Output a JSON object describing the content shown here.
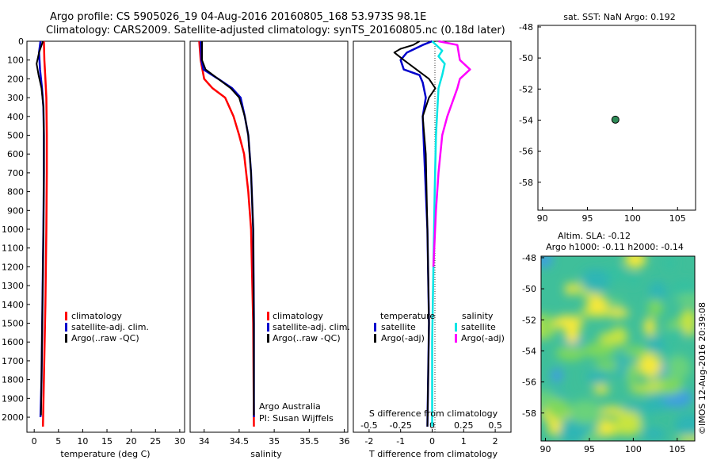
{
  "title": {
    "line1": "Argo profile: CS 5905026_19 04-Aug-2016 20160805_168 53.973S 98.1E",
    "line2": "Climatology: CARS2009. Satellite-adjusted climatology: synTS_20160805.nc (0.18d later)"
  },
  "credit": "Argo Australia",
  "pi": "PI: Susan Wijffels",
  "stamp": "©IMOS 12-Aug-2016 20:39:08",
  "colors": {
    "climatology": "#ff0000",
    "satellite": "#0000cc",
    "argo": "#000000",
    "sat_salinity": "#00e5e5",
    "argo_salinity": "#ff00ff",
    "marker": "#2e8b57"
  },
  "chart_data": [
    {
      "id": "temperature",
      "type": "line",
      "xlabel": "temperature (deg C)",
      "xlim": [
        -1.5,
        31
      ],
      "xticks": [
        0,
        5,
        10,
        15,
        20,
        25,
        30
      ],
      "ylim": [
        2080,
        0
      ],
      "yticks": [
        0,
        100,
        200,
        300,
        400,
        500,
        600,
        700,
        800,
        900,
        1000,
        1100,
        1200,
        1300,
        1400,
        1500,
        1600,
        1700,
        1800,
        1900,
        2000
      ],
      "legend": [
        "climatology",
        "satellite-adj. clim.",
        "Argo(..raw -QC)"
      ],
      "series": [
        {
          "name": "climatology",
          "color": "red",
          "points": [
            [
              2.0,
              0
            ],
            [
              2.1,
              100
            ],
            [
              2.3,
              200
            ],
            [
              2.5,
              300
            ],
            [
              2.6,
              500
            ],
            [
              2.6,
              700
            ],
            [
              2.5,
              1000
            ],
            [
              2.3,
              1400
            ],
            [
              2.0,
              1800
            ],
            [
              1.8,
              2050
            ]
          ]
        },
        {
          "name": "satellite-adj. clim.",
          "color": "blue",
          "points": [
            [
              1.3,
              0
            ],
            [
              1.0,
              60
            ],
            [
              1.2,
              150
            ],
            [
              1.6,
              250
            ],
            [
              1.9,
              350
            ],
            [
              2.0,
              500
            ],
            [
              2.0,
              700
            ],
            [
              1.9,
              1000
            ],
            [
              1.7,
              1400
            ],
            [
              1.5,
              1800
            ],
            [
              1.3,
              2000
            ]
          ]
        },
        {
          "name": "Argo(..raw -QC)",
          "color": "black",
          "points": [
            [
              1.8,
              0
            ],
            [
              1.0,
              60
            ],
            [
              0.5,
              120
            ],
            [
              0.9,
              180
            ],
            [
              1.5,
              250
            ],
            [
              1.9,
              350
            ],
            [
              2.0,
              500
            ],
            [
              2.0,
              700
            ],
            [
              1.9,
              1000
            ],
            [
              1.7,
              1400
            ],
            [
              1.5,
              1800
            ],
            [
              1.4,
              1990
            ]
          ]
        }
      ]
    },
    {
      "id": "salinity",
      "type": "line",
      "xlabel": "salinity",
      "xlim": [
        33.8,
        36.05
      ],
      "xticks": [
        34,
        34.5,
        35,
        35.5,
        36
      ],
      "ylim": [
        2080,
        0
      ],
      "legend": [
        "climatology",
        "satellite-adj. clim.",
        "Argo(..raw -QC)"
      ],
      "series": [
        {
          "name": "climatology",
          "color": "red",
          "points": [
            [
              33.93,
              0
            ],
            [
              33.95,
              100
            ],
            [
              34.0,
              200
            ],
            [
              34.12,
              250
            ],
            [
              34.3,
              300
            ],
            [
              34.42,
              400
            ],
            [
              34.5,
              500
            ],
            [
              34.57,
              600
            ],
            [
              34.63,
              800
            ],
            [
              34.67,
              1000
            ],
            [
              34.7,
              1500
            ],
            [
              34.71,
              2050
            ]
          ]
        },
        {
          "name": "satellite-adj. clim.",
          "color": "blue",
          "points": [
            [
              33.95,
              0
            ],
            [
              33.96,
              100
            ],
            [
              33.99,
              150
            ],
            [
              34.2,
              200
            ],
            [
              34.4,
              250
            ],
            [
              34.52,
              300
            ],
            [
              34.58,
              400
            ],
            [
              34.63,
              500
            ],
            [
              34.67,
              700
            ],
            [
              34.7,
              1000
            ],
            [
              34.71,
              1500
            ],
            [
              34.71,
              2000
            ]
          ]
        },
        {
          "name": "Argo(..raw -QC)",
          "color": "black",
          "points": [
            [
              33.97,
              0
            ],
            [
              33.97,
              100
            ],
            [
              34.02,
              150
            ],
            [
              34.2,
              200
            ],
            [
              34.38,
              250
            ],
            [
              34.5,
              300
            ],
            [
              34.58,
              400
            ],
            [
              34.63,
              500
            ],
            [
              34.67,
              700
            ],
            [
              34.7,
              1000
            ],
            [
              34.71,
              1500
            ],
            [
              34.71,
              1990
            ]
          ]
        }
      ]
    },
    {
      "id": "difference",
      "type": "line",
      "xlabel": "T difference from climatology",
      "x2label": "S difference from climatology",
      "xlim": [
        -2.5,
        2.5
      ],
      "xticks": [
        -2,
        -1,
        0,
        1,
        2
      ],
      "x2ticks": [
        -0.5,
        -0.25,
        0,
        0.25,
        0.5
      ],
      "ylim": [
        2080,
        0
      ],
      "legend_temperature": [
        "temperature",
        "satellite",
        "Argo(-adj)"
      ],
      "legend_salinity": [
        "salinity",
        "satellite",
        "Argo(-adj)"
      ],
      "series": [
        {
          "name": "T satellite",
          "color": "blue",
          "points": [
            [
              0,
              0
            ],
            [
              -0.3,
              20
            ],
            [
              -0.8,
              60
            ],
            [
              -1.0,
              100
            ],
            [
              -0.9,
              150
            ],
            [
              -0.4,
              180
            ],
            [
              -0.3,
              220
            ],
            [
              -0.2,
              300
            ],
            [
              -0.3,
              400
            ],
            [
              -0.25,
              600
            ],
            [
              -0.15,
              1000
            ],
            [
              -0.1,
              1500
            ],
            [
              -0.15,
              2050
            ]
          ]
        },
        {
          "name": "T Argo(-adj)",
          "color": "black",
          "points": [
            [
              -0.4,
              0
            ],
            [
              -0.6,
              20
            ],
            [
              -1.0,
              40
            ],
            [
              -1.2,
              60
            ],
            [
              -0.9,
              100
            ],
            [
              -0.5,
              150
            ],
            [
              -0.1,
              200
            ],
            [
              0.1,
              250
            ],
            [
              -0.1,
              300
            ],
            [
              -0.3,
              400
            ],
            [
              -0.2,
              600
            ],
            [
              -0.15,
              1000
            ],
            [
              -0.1,
              1500
            ],
            [
              -0.15,
              2050
            ]
          ]
        },
        {
          "name": "S satellite",
          "color": "cyan",
          "points": [
            [
              0.0,
              0
            ],
            [
              0.08,
              50
            ],
            [
              0.05,
              80
            ],
            [
              0.1,
              120
            ],
            [
              0.08,
              180
            ],
            [
              0.05,
              250
            ],
            [
              0.03,
              500
            ],
            [
              0.02,
              800
            ],
            [
              0.01,
              1200
            ],
            [
              0.0,
              1600
            ],
            [
              0.0,
              2050
            ]
          ]
        },
        {
          "name": "S Argo(-adj)",
          "color": "magenta",
          "points": [
            [
              0.05,
              0
            ],
            [
              0.2,
              20
            ],
            [
              0.22,
              100
            ],
            [
              0.3,
              150
            ],
            [
              0.22,
              200
            ],
            [
              0.2,
              250
            ],
            [
              0.12,
              400
            ],
            [
              0.08,
              500
            ],
            [
              0.05,
              700
            ],
            [
              0.03,
              900
            ],
            [
              0.01,
              1200
            ]
          ]
        }
      ]
    },
    {
      "id": "location",
      "type": "scatter",
      "title": "sat. SST: NaN Argo: 0.192",
      "xlim": [
        89.5,
        107
      ],
      "xticks": [
        90,
        95,
        100,
        105
      ],
      "ylim": [
        -59.8,
        -47.9
      ],
      "yticks": [
        -48,
        -50,
        -52,
        -54,
        -56,
        -58
      ],
      "points": [
        [
          98.1,
          -53.97
        ]
      ]
    },
    {
      "id": "sla",
      "type": "heatmap",
      "title1": "Altim. SLA: -0.12",
      "title2": "Argo h1000: -0.11 h2000: -0.14",
      "xlim": [
        89.5,
        107
      ],
      "xticks": [
        90,
        95,
        100,
        105
      ],
      "ylim": [
        -59.8,
        -47.9
      ],
      "yticks": [
        -48,
        -50,
        -52,
        -54,
        -56,
        -58
      ]
    }
  ]
}
